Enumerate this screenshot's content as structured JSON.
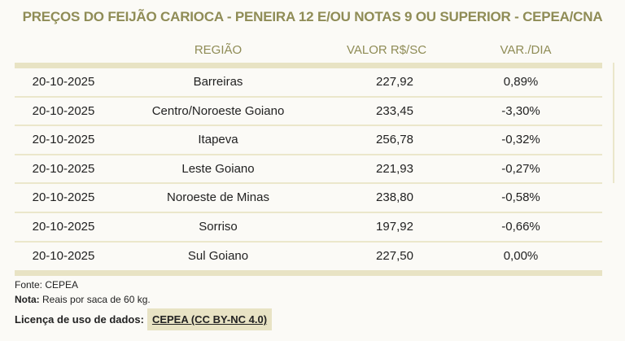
{
  "title": "PREÇOS DO FEIJÃO CARIOCA - PENEIRA 12 E/OU NOTAS 9 OU SUPERIOR - CEPEA/CNA",
  "columns": [
    "",
    "REGIÃO",
    "VALOR R$/SC",
    "VAR./DIA"
  ],
  "rows": [
    {
      "date": "20-10-2025",
      "region": "Barreiras",
      "value": "227,92",
      "var": "0,89%"
    },
    {
      "date": "20-10-2025",
      "region": "Centro/Noroeste Goiano",
      "value": "233,45",
      "var": "-3,30%"
    },
    {
      "date": "20-10-2025",
      "region": "Itapeva",
      "value": "256,78",
      "var": "-0,32%"
    },
    {
      "date": "20-10-2025",
      "region": "Leste Goiano",
      "value": "221,93",
      "var": "-0,27%"
    },
    {
      "date": "20-10-2025",
      "region": "Noroeste de Minas",
      "value": "238,80",
      "var": "-0,58%"
    },
    {
      "date": "20-10-2025",
      "region": "Sorriso",
      "value": "197,92",
      "var": "-0,66%"
    },
    {
      "date": "20-10-2025",
      "region": "Sul Goiano",
      "value": "227,50",
      "var": "0,00%"
    }
  ],
  "footer": {
    "source": "Fonte: CEPEA",
    "note_label": "Nota:",
    "note_text": " Reais por saca de 60 kg.",
    "license_label": "Licença de uso de dados:",
    "license_link": "CEPEA (CC BY-NC 4.0)"
  },
  "colors": {
    "accent": "#8f8c56",
    "bar": "#e8e3c4"
  }
}
